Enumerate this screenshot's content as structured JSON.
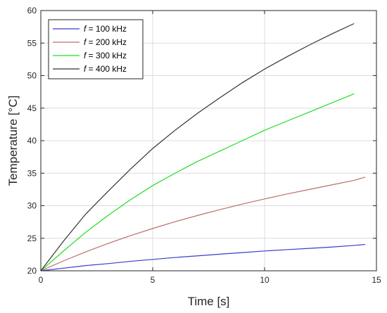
{
  "chart_data": {
    "type": "line",
    "title": "",
    "xlabel": "Time [s]",
    "ylabel": "Temperature [°C]",
    "xlim": [
      0,
      15
    ],
    "ylim": [
      20,
      60
    ],
    "xticks": [
      0,
      5,
      10,
      15
    ],
    "yticks": [
      20,
      25,
      30,
      35,
      40,
      45,
      50,
      55,
      60
    ],
    "xtick_labels": [
      "0",
      "5",
      "10",
      "15"
    ],
    "ytick_labels": [
      "20",
      "25",
      "30",
      "35",
      "40",
      "45",
      "50",
      "55",
      "60"
    ],
    "grid": true,
    "legend_position": "top-left",
    "series": [
      {
        "name": "f = 100 kHz",
        "name_symbol": "f",
        "name_rest": " = 100 kHz",
        "color": "#3b3bd0",
        "x": [
          0,
          1,
          2,
          3,
          4,
          5,
          6,
          7,
          8,
          9,
          10,
          11,
          12,
          13,
          14,
          14.5
        ],
        "y": [
          20.0,
          20.4,
          20.8,
          21.1,
          21.45,
          21.75,
          22.05,
          22.3,
          22.55,
          22.8,
          23.05,
          23.25,
          23.45,
          23.65,
          23.9,
          24.05
        ]
      },
      {
        "name": "f = 200 kHz",
        "name_symbol": "f",
        "name_rest": " = 200 kHz",
        "color": "#b8706a",
        "x": [
          0,
          1,
          2,
          3,
          4,
          5,
          6,
          7,
          8,
          9,
          10,
          11,
          12,
          13,
          14,
          14.5
        ],
        "y": [
          20.0,
          21.5,
          22.9,
          24.2,
          25.4,
          26.5,
          27.55,
          28.5,
          29.4,
          30.25,
          31.05,
          31.8,
          32.5,
          33.2,
          33.9,
          34.4
        ]
      },
      {
        "name": "f = 300 kHz",
        "name_symbol": "f",
        "name_rest": " = 300 kHz",
        "color": "#22dd22",
        "x": [
          0,
          1,
          2,
          3,
          4,
          5,
          6,
          7,
          8,
          9,
          10,
          11,
          12,
          13,
          14
        ],
        "y": [
          20.0,
          23.0,
          25.9,
          28.5,
          30.9,
          33.1,
          35.0,
          36.8,
          38.4,
          40.0,
          41.6,
          43.0,
          44.4,
          45.8,
          47.2
        ]
      },
      {
        "name": "f = 400 kHz",
        "name_symbol": "f",
        "name_rest": " = 400 kHz",
        "color": "#333333",
        "x": [
          0,
          1,
          2,
          3,
          4,
          5,
          6,
          7,
          8,
          9,
          10,
          11,
          12,
          13,
          14
        ],
        "y": [
          20.0,
          24.5,
          28.7,
          32.2,
          35.6,
          38.8,
          41.6,
          44.2,
          46.6,
          48.9,
          51.0,
          52.9,
          54.7,
          56.4,
          58.0
        ]
      }
    ]
  }
}
